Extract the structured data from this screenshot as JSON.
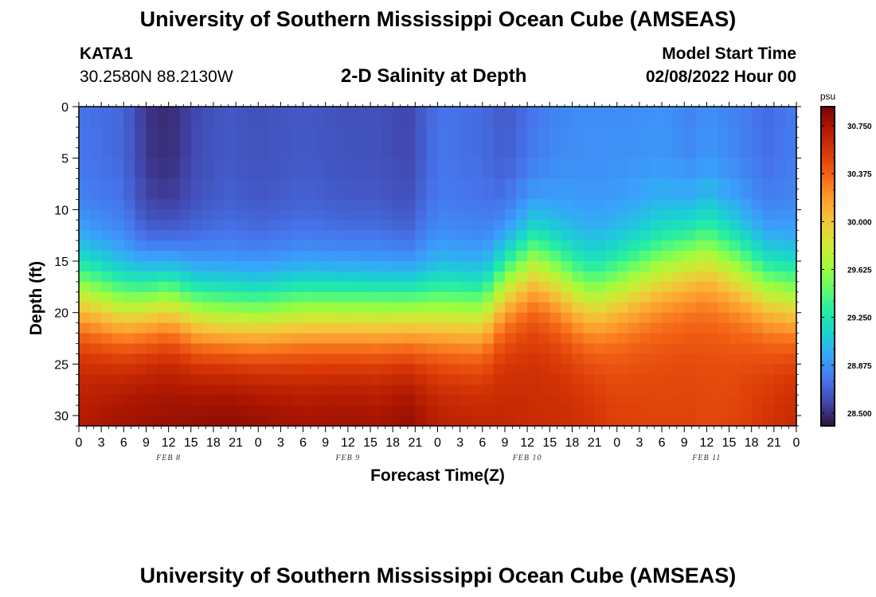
{
  "header": {
    "title": "University of Southern Mississippi Ocean Cube (AMSEAS)",
    "station_name": "KATA1",
    "station_coords": "30.2580N  88.2130W",
    "plot_title": "2-D Salinity at Depth",
    "model_start_label": "Model Start Time",
    "model_start_value": "02/08/2022 Hour 00"
  },
  "footer": {
    "title": "University of Southern Mississippi Ocean Cube (AMSEAS)"
  },
  "chart_data": {
    "type": "heatmap",
    "title": "2-D Salinity at Depth",
    "xlabel": "Forecast Time(Z)",
    "ylabel": "Depth (ft)",
    "x_tick_labels": [
      "0",
      "3",
      "6",
      "9",
      "12",
      "15",
      "18",
      "21",
      "0",
      "3",
      "6",
      "9",
      "12",
      "15",
      "18",
      "21",
      "0",
      "3",
      "6",
      "9",
      "12",
      "15",
      "18",
      "21",
      "0",
      "3",
      "6",
      "9",
      "12",
      "15",
      "18",
      "21",
      "0"
    ],
    "x_range_hours": [
      0,
      96
    ],
    "day_labels": [
      {
        "label": "FEB 8",
        "hour": 12
      },
      {
        "label": "FEB 9",
        "hour": 36
      },
      {
        "label": "FEB 10",
        "hour": 60
      },
      {
        "label": "FEB 11",
        "hour": 84
      }
    ],
    "y_tick_labels": [
      "0",
      "5",
      "10",
      "15",
      "20",
      "25",
      "30"
    ],
    "y_range_ft": [
      0,
      31
    ],
    "colorbar": {
      "unit": "psu",
      "range": [
        28.4,
        30.9
      ],
      "tick_labels": [
        "30.750",
        "30.375",
        "30.000",
        "29.625",
        "29.250",
        "28.875",
        "28.500"
      ],
      "ticks": [
        30.75,
        30.375,
        30.0,
        29.625,
        29.25,
        28.875,
        28.5
      ],
      "colormap": [
        "#30123b",
        "#4145ab",
        "#4675ed",
        "#39a2fc",
        "#1bcfd4",
        "#24eca6",
        "#61fc6c",
        "#a4fc3b",
        "#d1e834",
        "#f3c63a",
        "#fe9b2d",
        "#f36315",
        "#d93806",
        "#b11901",
        "#7a0403"
      ]
    },
    "series": {
      "x_hours": [
        0,
        6,
        9,
        12,
        16,
        20,
        24,
        30,
        36,
        40,
        44,
        48,
        54,
        57,
        61,
        64,
        67,
        69,
        72,
        78,
        82,
        84,
        88,
        92,
        96
      ],
      "depth_ft": [
        0,
        2,
        5,
        7,
        9,
        10,
        11,
        12,
        13,
        14,
        15,
        16,
        17,
        18,
        19,
        20,
        21,
        22,
        23,
        24,
        25,
        26,
        27,
        28,
        29,
        30,
        31
      ],
      "halocline_depth_ft": [
        14.5,
        16,
        15.5,
        15,
        16.5,
        17,
        17,
        16.5,
        16.5,
        16.5,
        16.5,
        16.5,
        16.5,
        13.5,
        11.5,
        13,
        14.5,
        15,
        14,
        12,
        11,
        10.5,
        12,
        14,
        15
      ],
      "surface_salinity": [
        28.75,
        28.7,
        28.52,
        28.48,
        28.6,
        28.65,
        28.62,
        28.65,
        28.62,
        28.62,
        28.58,
        28.75,
        28.72,
        28.65,
        28.75,
        28.82,
        28.85,
        28.85,
        28.85,
        28.87,
        28.8,
        28.85,
        28.8,
        28.72,
        28.78
      ],
      "bottom_salinity": [
        30.72,
        30.8,
        30.82,
        30.82,
        30.85,
        30.88,
        30.85,
        30.8,
        30.82,
        30.8,
        30.85,
        30.72,
        30.68,
        30.65,
        30.62,
        30.62,
        30.6,
        30.58,
        30.52,
        30.5,
        30.5,
        30.48,
        30.5,
        30.58,
        30.65
      ]
    }
  }
}
